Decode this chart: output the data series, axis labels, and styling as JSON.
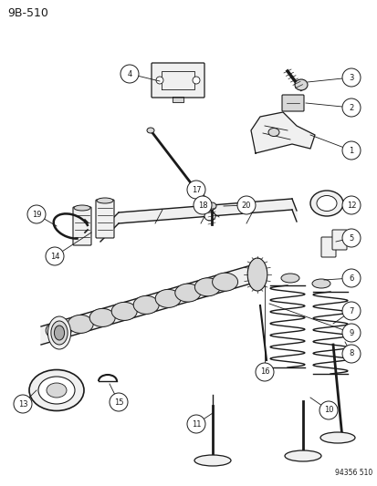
{
  "title": "9B-510",
  "watermark": "94356 510",
  "bg_color": "#ffffff",
  "line_color": "#1a1a1a",
  "fig_width": 4.14,
  "fig_height": 5.33,
  "dpi": 100
}
